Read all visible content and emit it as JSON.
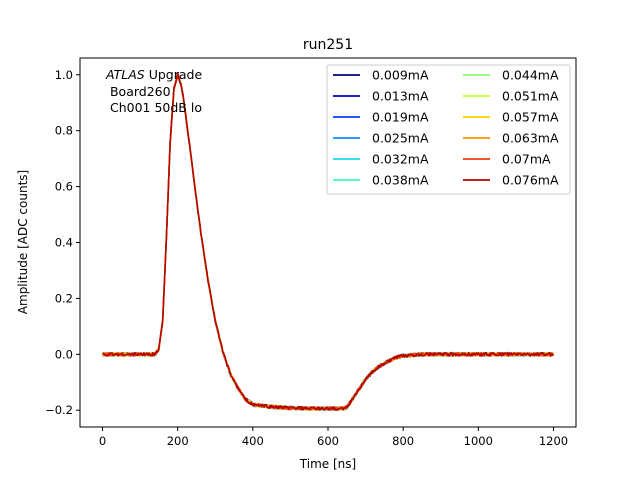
{
  "chart_data": {
    "type": "line",
    "title": "run251",
    "xlabel": "Time [ns]",
    "ylabel": "Amplitude [ADC counts]",
    "xlim": [
      -60,
      1260
    ],
    "ylim": [
      -0.26,
      1.06
    ],
    "xticks": [
      0,
      200,
      400,
      600,
      800,
      1000,
      1200
    ],
    "yticks": [
      -0.2,
      0.0,
      0.2,
      0.4,
      0.6,
      0.8,
      1.0
    ],
    "xtick_labels": [
      "0",
      "200",
      "400",
      "600",
      "800",
      "1000",
      "1200"
    ],
    "ytick_labels": [
      "−0.2",
      "0.0",
      "0.2",
      "0.4",
      "0.6",
      "0.8",
      "1.0"
    ],
    "grid": false,
    "legend_position": "top-right",
    "legend_columns": 2,
    "annotation": {
      "line1_italic": "ATLAS",
      "line1_rest": " Upgrade",
      "line2": " Board260",
      "line3": " Ch001 50dB lo"
    },
    "pulse_shape": {
      "x": [
        0,
        100,
        140,
        150,
        160,
        170,
        180,
        190,
        200,
        210,
        220,
        240,
        260,
        280,
        300,
        320,
        340,
        360,
        380,
        400,
        450,
        500,
        550,
        600,
        620,
        640,
        650,
        660,
        680,
        700,
        720,
        740,
        760,
        780,
        800,
        850,
        900,
        1000,
        1100,
        1200
      ],
      "y": [
        0.0,
        0.0,
        0.0,
        0.02,
        0.12,
        0.42,
        0.76,
        0.95,
        1.0,
        0.96,
        0.87,
        0.66,
        0.45,
        0.27,
        0.12,
        0.01,
        -0.07,
        -0.12,
        -0.16,
        -0.18,
        -0.188,
        -0.192,
        -0.194,
        -0.194,
        -0.194,
        -0.194,
        -0.19,
        -0.17,
        -0.13,
        -0.09,
        -0.06,
        -0.04,
        -0.025,
        -0.012,
        -0.005,
        0.0,
        0.0,
        0.0,
        0.0,
        0.0
      ]
    },
    "series": [
      {
        "name": "0.009mA",
        "color": "#00007f"
      },
      {
        "name": "0.013mA",
        "color": "#0000c8"
      },
      {
        "name": "0.019mA",
        "color": "#0a3dff"
      },
      {
        "name": "0.025mA",
        "color": "#0f8cff"
      },
      {
        "name": "0.032mA",
        "color": "#1cdcea"
      },
      {
        "name": "0.038mA",
        "color": "#3dffb9"
      },
      {
        "name": "0.044mA",
        "color": "#8bff6b"
      },
      {
        "name": "0.051mA",
        "color": "#c7ff30"
      },
      {
        "name": "0.057mA",
        "color": "#ffd100"
      },
      {
        "name": "0.063mA",
        "color": "#ff9000"
      },
      {
        "name": "0.07mA",
        "color": "#f03b0b"
      },
      {
        "name": "0.076mA",
        "color": "#b80000"
      }
    ]
  }
}
